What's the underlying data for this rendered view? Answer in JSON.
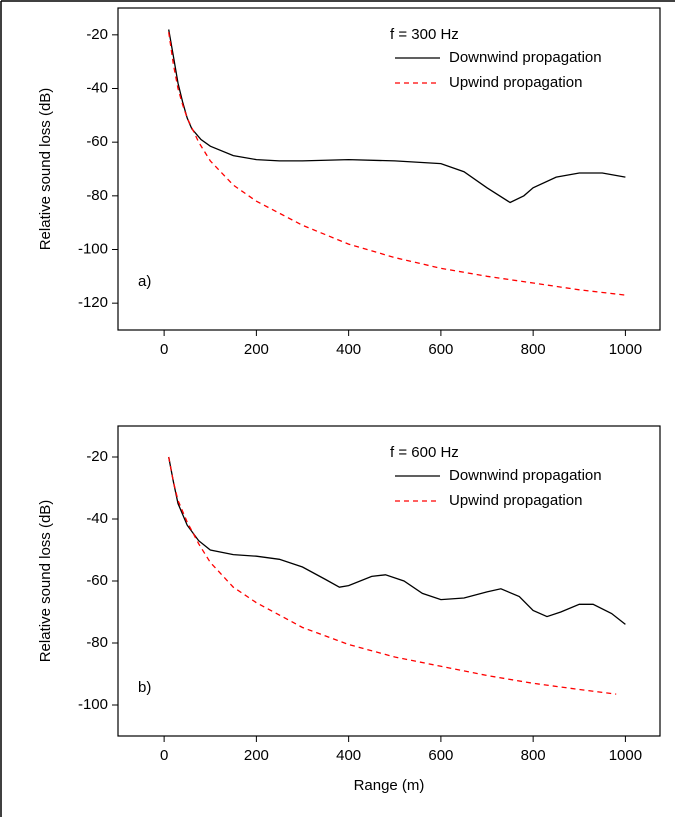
{
  "chart_data": [
    {
      "type": "line",
      "annotation": "f = 300 Hz",
      "panel_label": "a)",
      "ylabel": "Relative sound loss (dB)",
      "xlim": [
        -100,
        1075
      ],
      "ylim": [
        -130,
        -10
      ],
      "xticks": [
        0,
        200,
        400,
        600,
        800,
        1000
      ],
      "yticks": [
        -120,
        -100,
        -80,
        -60,
        -40,
        -20
      ],
      "series": [
        {
          "name": "Downwind propagation",
          "color": "#000000",
          "dash": "solid",
          "x": [
            10,
            20,
            30,
            40,
            50,
            60,
            80,
            100,
            150,
            200,
            250,
            300,
            400,
            500,
            600,
            650,
            700,
            750,
            780,
            800,
            850,
            900,
            950,
            1000
          ],
          "values": [
            -18,
            -28,
            -38,
            -45,
            -51,
            -55,
            -59,
            -61.5,
            -65,
            -66.5,
            -67,
            -67,
            -66.5,
            -67,
            -68,
            -71,
            -77,
            -82.5,
            -80,
            -77,
            -73,
            -71.5,
            -71.5,
            -73
          ]
        },
        {
          "name": "Upwind propagation",
          "color": "#ff0000",
          "dash": "dashed",
          "x": [
            10,
            20,
            30,
            40,
            50,
            75,
            100,
            150,
            200,
            300,
            400,
            500,
            600,
            700,
            800,
            900,
            1000
          ],
          "values": [
            -19,
            -31,
            -40,
            -46,
            -51,
            -60,
            -67,
            -76,
            -82,
            -91,
            -98,
            -103,
            -107,
            -110,
            -112.5,
            -115,
            -117
          ]
        }
      ]
    },
    {
      "type": "line",
      "annotation": "f = 600 Hz",
      "panel_label": "b)",
      "ylabel": "Relative sound loss (dB)",
      "xlabel": "Range (m)",
      "xlim": [
        -100,
        1075
      ],
      "ylim": [
        -110,
        -10
      ],
      "xticks": [
        0,
        200,
        400,
        600,
        800,
        1000
      ],
      "yticks": [
        -100,
        -80,
        -60,
        -40,
        -20
      ],
      "series": [
        {
          "name": "Downwind propagation",
          "color": "#000000",
          "dash": "solid",
          "x": [
            10,
            20,
            30,
            50,
            75,
            100,
            150,
            200,
            250,
            300,
            350,
            380,
            400,
            450,
            480,
            520,
            560,
            600,
            650,
            700,
            730,
            770,
            800,
            830,
            860,
            900,
            930,
            970,
            1000
          ],
          "values": [
            -20,
            -28,
            -35,
            -42,
            -47,
            -50,
            -51.5,
            -52,
            -53,
            -55.5,
            -59.5,
            -62,
            -61.5,
            -58.5,
            -58,
            -60,
            -64,
            -66,
            -65.5,
            -63.5,
            -62.5,
            -65,
            -69.5,
            -71.5,
            -70,
            -67.5,
            -67.5,
            -70.5,
            -74
          ]
        },
        {
          "name": "Upwind propagation",
          "color": "#ff0000",
          "dash": "dashed",
          "x": [
            10,
            20,
            30,
            50,
            75,
            100,
            150,
            200,
            300,
            400,
            500,
            600,
            700,
            800,
            900,
            980
          ],
          "values": [
            -20,
            -28,
            -34,
            -41,
            -48,
            -54,
            -62,
            -67,
            -75,
            -80.5,
            -84.5,
            -87.5,
            -90.5,
            -93,
            -95,
            -96.5
          ]
        }
      ]
    }
  ]
}
